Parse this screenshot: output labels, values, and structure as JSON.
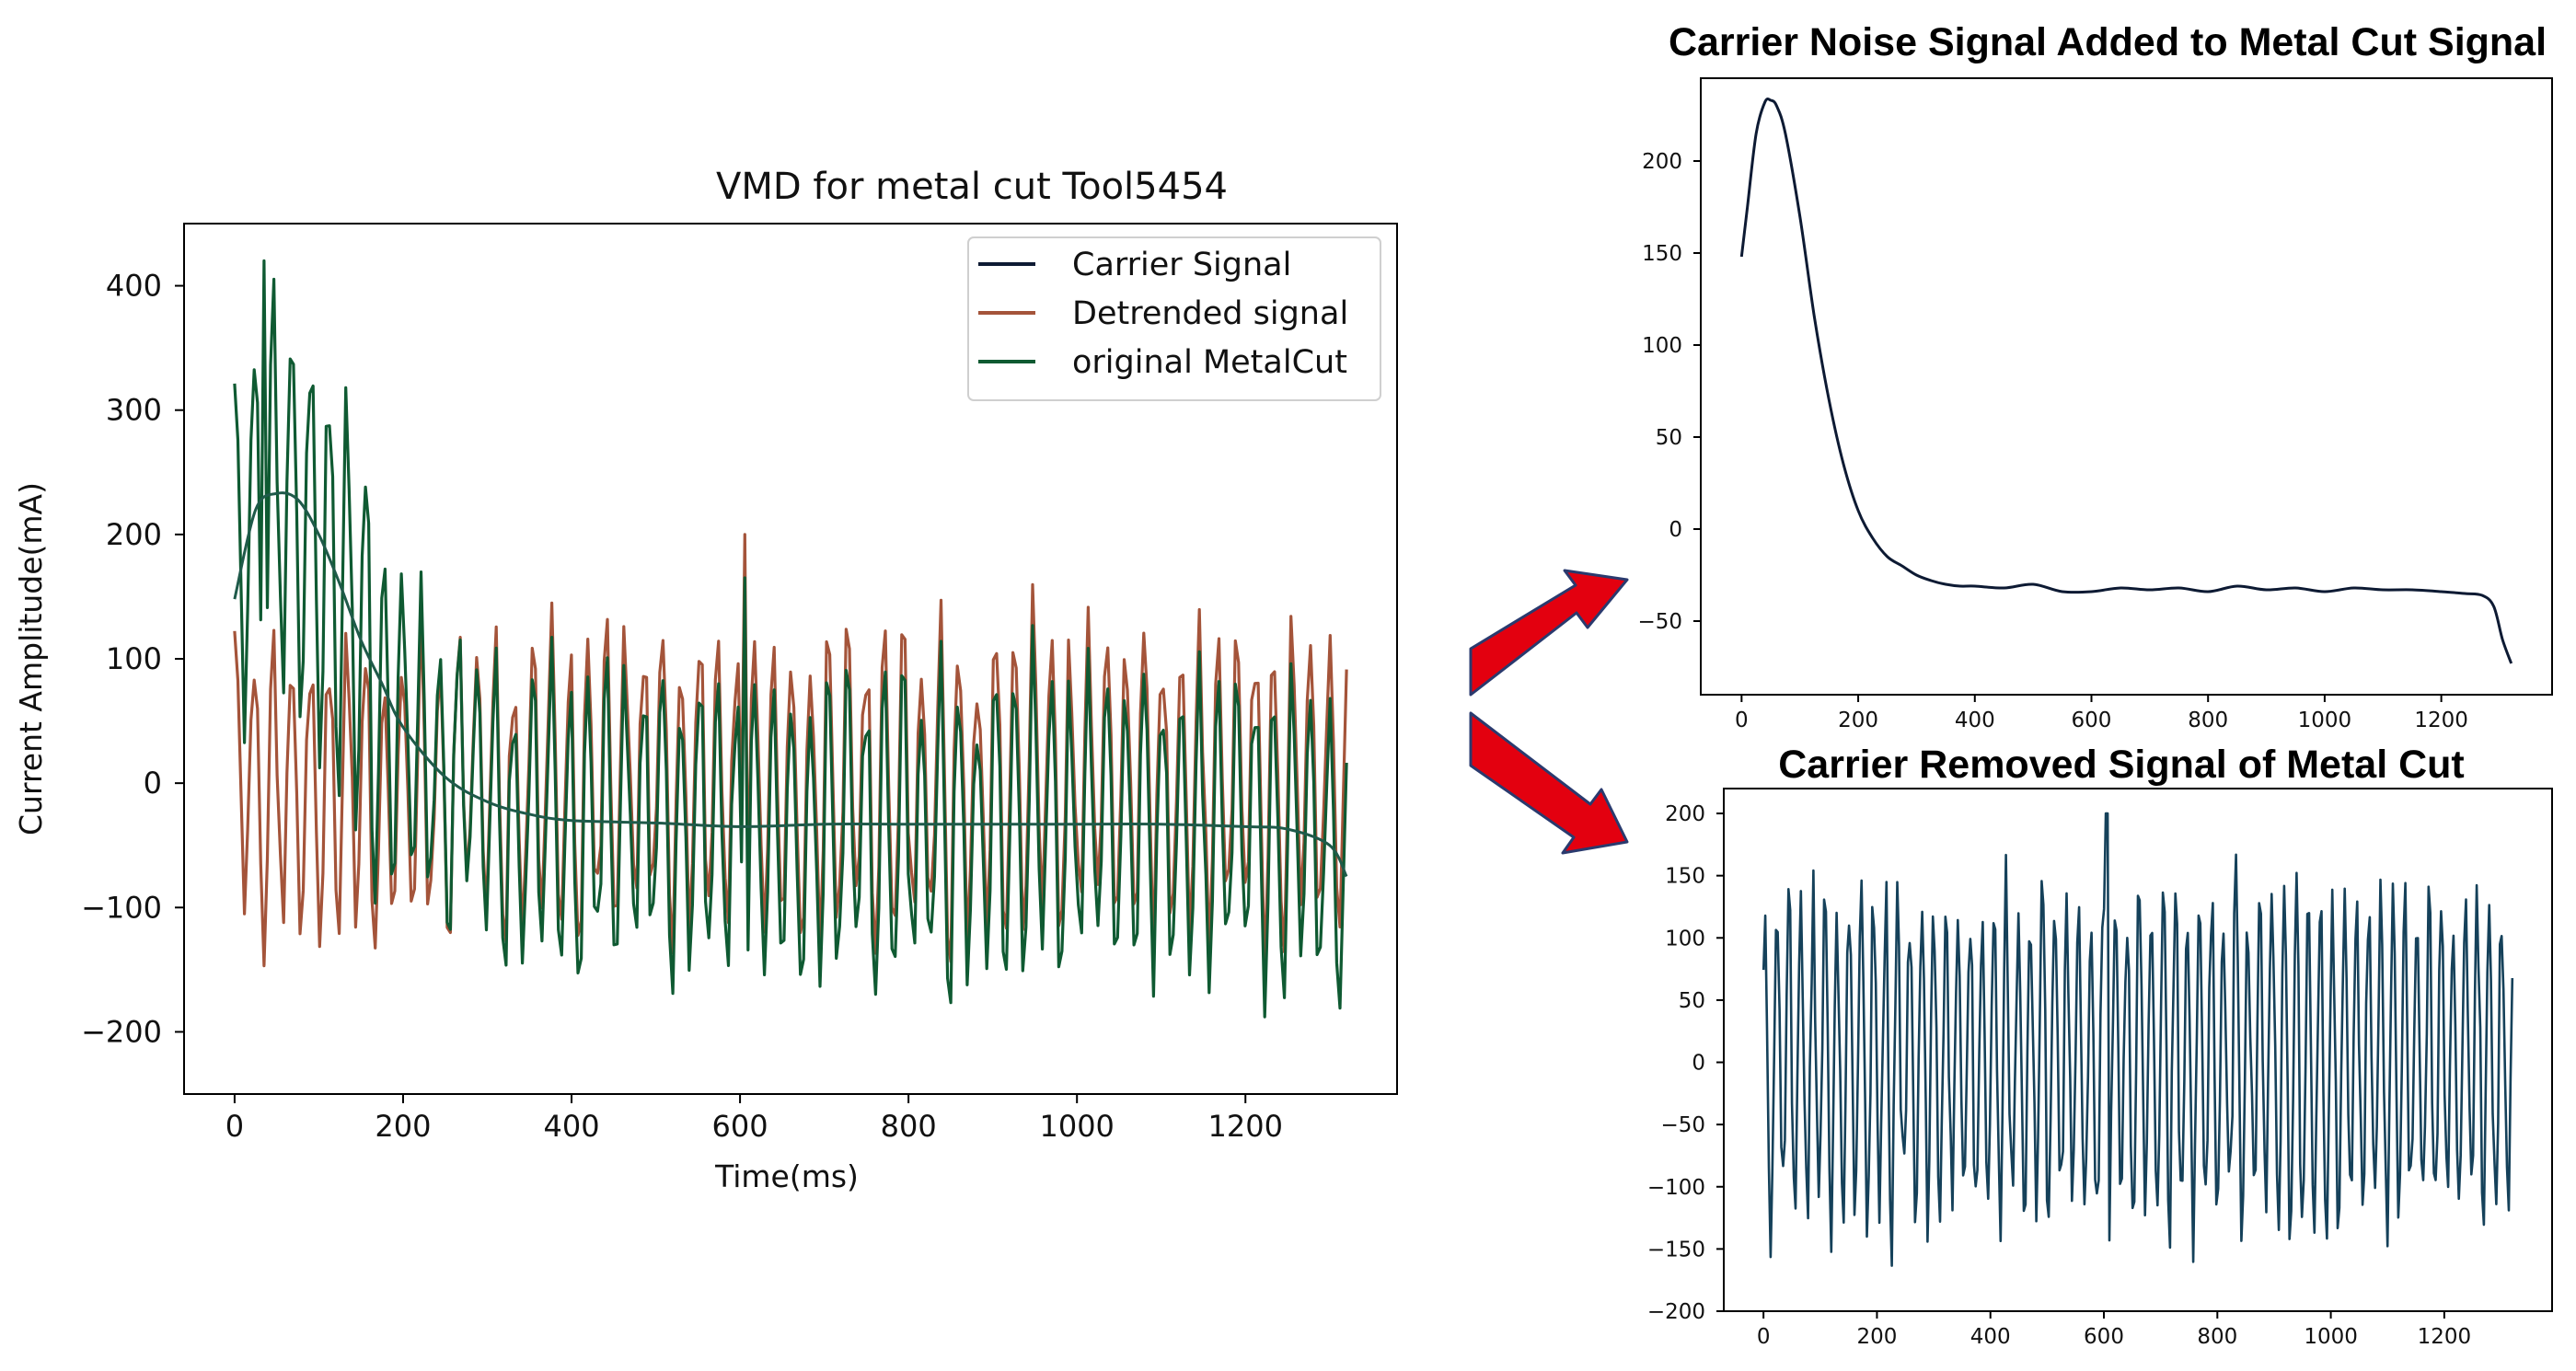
{
  "colors": {
    "carrier": "#0d1a33",
    "detrended": "#a4543a",
    "original": "#0f5a32",
    "removed": "#15415a",
    "arrow": "#e3000f",
    "arrow_outline": "#2a3a6e"
  },
  "chart_data": [
    {
      "type": "line",
      "title": "VMD for metal cut Tool5454",
      "xlabel": "Time(ms)",
      "ylabel": "Current Amplitude(mA)",
      "xlim": [
        -60,
        1380
      ],
      "ylim": [
        -250,
        450
      ],
      "xticks": [
        0,
        200,
        400,
        600,
        800,
        1000,
        1200
      ],
      "yticks": [
        -200,
        -100,
        0,
        100,
        200,
        300,
        400
      ],
      "grid": false,
      "legend_position": "top-right",
      "legend": [
        "Carrier Signal",
        "Detrended signal",
        "original MetalCut"
      ],
      "series": [
        {
          "name": "Carrier Signal",
          "x": [
            0,
            25,
            50,
            75,
            100,
            125,
            150,
            175,
            200,
            250,
            300,
            350,
            400,
            500,
            600,
            700,
            800,
            900,
            1000,
            1100,
            1200,
            1250,
            1300,
            1320
          ],
          "values": [
            148,
            220,
            233,
            228,
            200,
            160,
            115,
            80,
            45,
            5,
            -15,
            -25,
            -30,
            -32,
            -35,
            -33,
            -33,
            -33,
            -33,
            -33,
            -35,
            -37,
            -50,
            -75
          ]
        },
        {
          "name": "Detrended signal",
          "amplitude_min": -175,
          "amplitude_max": 200,
          "x_range": [
            0,
            1320
          ]
        },
        {
          "name": "original MetalCut",
          "amplitude_min": -215,
          "amplitude_max": 420,
          "peak_x": 35,
          "x_range": [
            0,
            1320
          ]
        }
      ]
    },
    {
      "type": "line",
      "title": "Carrier Noise Signal Added to Metal Cut Signal",
      "xlim": [
        -70,
        1390
      ],
      "ylim": [
        -90,
        245
      ],
      "xticks": [
        0,
        200,
        400,
        600,
        800,
        1000,
        1200
      ],
      "yticks": [
        -50,
        0,
        50,
        100,
        150,
        200
      ],
      "grid": false,
      "series": [
        {
          "x": [
            0,
            10,
            25,
            40,
            50,
            60,
            75,
            100,
            125,
            150,
            175,
            200,
            225,
            250,
            275,
            300,
            325,
            350,
            375,
            400,
            450,
            500,
            550,
            600,
            650,
            700,
            750,
            800,
            850,
            900,
            950,
            1000,
            1050,
            1100,
            1150,
            1200,
            1240,
            1270,
            1290,
            1305,
            1320
          ],
          "values": [
            148,
            175,
            215,
            232,
            233,
            230,
            215,
            170,
            115,
            70,
            35,
            10,
            -5,
            -15,
            -20,
            -25,
            -28,
            -30,
            -31,
            -31,
            -32,
            -30,
            -34,
            -34,
            -32,
            -33,
            -32,
            -34,
            -31,
            -33,
            -32,
            -34,
            -32,
            -33,
            -33,
            -34,
            -35,
            -36,
            -42,
            -60,
            -73
          ]
        }
      ]
    },
    {
      "type": "line",
      "title": "Carrier Removed Signal of Metal Cut",
      "xlim": [
        -70,
        1390
      ],
      "ylim": [
        -200,
        220
      ],
      "xticks": [
        0,
        200,
        400,
        600,
        800,
        1000,
        1200
      ],
      "yticks": [
        -200,
        -150,
        -100,
        -50,
        0,
        50,
        100,
        150,
        200
      ],
      "grid": false,
      "series": [
        {
          "name": "",
          "amplitude_min": -180,
          "amplitude_max": 200,
          "x_range": [
            0,
            1320
          ]
        }
      ]
    }
  ]
}
